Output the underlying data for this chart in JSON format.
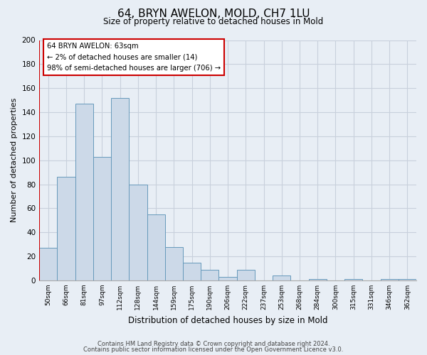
{
  "title": "64, BRYN AWELON, MOLD, CH7 1LU",
  "subtitle": "Size of property relative to detached houses in Mold",
  "xlabel": "Distribution of detached houses by size in Mold",
  "ylabel": "Number of detached properties",
  "bar_labels": [
    "50sqm",
    "66sqm",
    "81sqm",
    "97sqm",
    "112sqm",
    "128sqm",
    "144sqm",
    "159sqm",
    "175sqm",
    "190sqm",
    "206sqm",
    "222sqm",
    "237sqm",
    "253sqm",
    "268sqm",
    "284sqm",
    "300sqm",
    "315sqm",
    "331sqm",
    "346sqm",
    "362sqm"
  ],
  "bar_values": [
    27,
    86,
    147,
    103,
    152,
    80,
    55,
    28,
    15,
    9,
    3,
    9,
    0,
    4,
    0,
    1,
    0,
    1,
    0,
    1,
    1
  ],
  "bar_color": "#ccd9e8",
  "bar_edge_color": "#6699bb",
  "red_line_color": "#cc0000",
  "red_line_x": -0.5,
  "annotation_text_line1": "64 BRYN AWELON: 63sqm",
  "annotation_text_line2": "← 2% of detached houses are smaller (14)",
  "annotation_text_line3": "98% of semi-detached houses are larger (706) →",
  "ylim": [
    0,
    200
  ],
  "yticks": [
    0,
    20,
    40,
    60,
    80,
    100,
    120,
    140,
    160,
    180,
    200
  ],
  "footer_line1": "Contains HM Land Registry data © Crown copyright and database right 2024.",
  "footer_line2": "Contains public sector information licensed under the Open Government Licence v3.0.",
  "bg_color": "#e8eef5",
  "plot_bg_color": "#e8eef5",
  "grid_color": "#c8d0dc"
}
